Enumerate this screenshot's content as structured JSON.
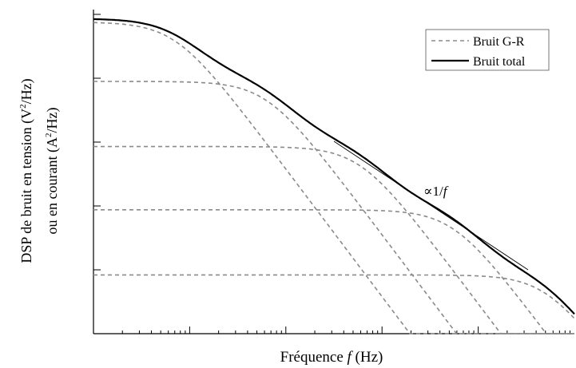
{
  "chart_data": {
    "type": "line",
    "title": "",
    "xlabel": "Fréquence",
    "xlabel_var": "f",
    "xlabel_unit": "(Hz)",
    "ylabel_line1": "DSP de bruit en tension",
    "ylabel_unit1_base": "(V",
    "ylabel_unit1_tail": "/Hz)",
    "ylabel_line2": "ou en courant",
    "ylabel_unit2_base": "(A",
    "ylabel_unit2_tail": "/Hz)",
    "ylabel_exp": "2",
    "x_scale": "log",
    "y_scale": "log",
    "xlim_decades": [
      0,
      5
    ],
    "ylim_decades": [
      0,
      5
    ],
    "grid": false,
    "legend_position": "top-right",
    "series": [
      {
        "name": "Bruit G-R",
        "style": "dashed",
        "color": "#8a8a8a",
        "components": [
          {
            "plateau_log_psd": 4.88,
            "corner_log_f": 0.85
          },
          {
            "plateau_log_psd": 3.95,
            "corner_log_f": 1.8
          },
          {
            "plateau_log_psd": 2.93,
            "corner_log_f": 2.77
          },
          {
            "plateau_log_psd": 1.94,
            "corner_log_f": 3.74
          },
          {
            "plateau_log_psd": 0.92,
            "corner_log_f": 4.71
          }
        ]
      },
      {
        "name": "Bruit total",
        "style": "solid",
        "color": "#000000"
      }
    ],
    "annotations": {
      "slope_prefix": "∝1/",
      "slope_var": "f"
    }
  }
}
